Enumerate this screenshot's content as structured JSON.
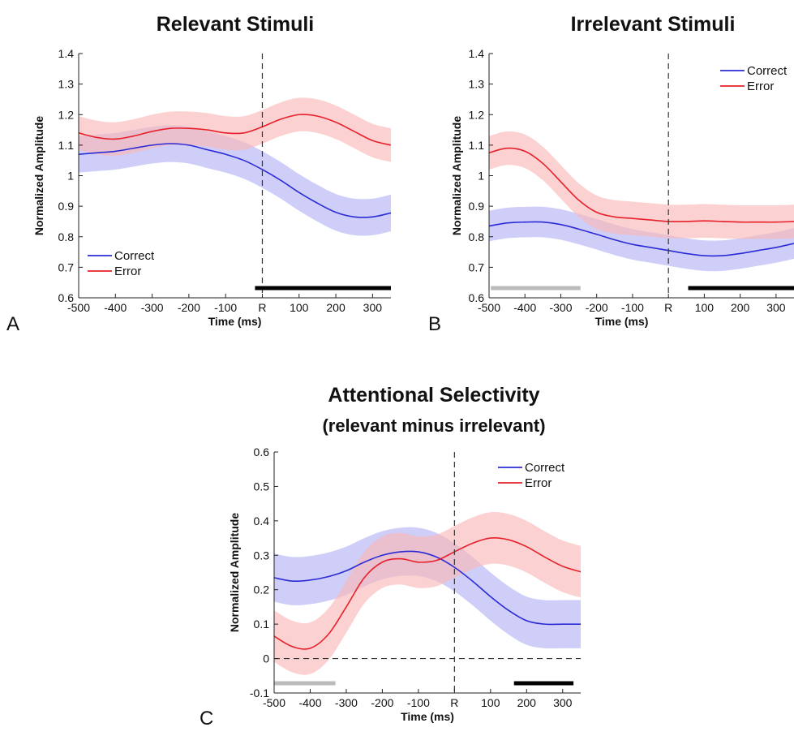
{
  "chart_data": [
    {
      "type": "line",
      "panel_letter": "A",
      "title": "Relevant Stimuli",
      "subtitle": "",
      "xlabel": "Time (ms)",
      "ylabel": "Normalized Amplitude",
      "xlim": [
        -500,
        350
      ],
      "ylim": [
        0.6,
        1.4
      ],
      "xticks": [
        -500,
        -400,
        -300,
        -200,
        -100,
        0,
        100,
        200,
        300
      ],
      "xtick_labels": [
        "-500",
        "-400",
        "-300",
        "-200",
        "-100",
        "R",
        "100",
        "200",
        "300"
      ],
      "yticks": [
        0.6,
        0.7,
        0.8,
        0.9,
        1.0,
        1.1,
        1.2,
        1.3,
        1.4
      ],
      "ytick_labels": [
        "0.6",
        "0.7",
        "0.8",
        "0.9",
        "1",
        "1.1",
        "1.2",
        "1.3",
        "1.4"
      ],
      "vline_x": 0,
      "hline_y": null,
      "legend_position": "bottom-left",
      "significance_bars": [
        {
          "color": "#000000",
          "x_start": -20,
          "x_end": 350
        }
      ],
      "x": [
        -500,
        -450,
        -400,
        -350,
        -300,
        -250,
        -200,
        -150,
        -100,
        -50,
        0,
        50,
        100,
        150,
        200,
        250,
        300,
        350
      ],
      "series": [
        {
          "name": "Correct",
          "color": "#2b2bd6",
          "band_color": "#b4b4f6",
          "values": [
            1.07,
            1.075,
            1.08,
            1.09,
            1.1,
            1.105,
            1.1,
            1.085,
            1.07,
            1.05,
            1.02,
            0.985,
            0.945,
            0.91,
            0.88,
            0.865,
            0.865,
            0.878
          ],
          "band": 0.06
        },
        {
          "name": "Error",
          "color": "#e8202a",
          "band_color": "#f9b8b8",
          "values": [
            1.14,
            1.125,
            1.12,
            1.13,
            1.145,
            1.155,
            1.155,
            1.15,
            1.14,
            1.14,
            1.16,
            1.185,
            1.2,
            1.195,
            1.175,
            1.145,
            1.115,
            1.1
          ],
          "band": 0.055
        }
      ]
    },
    {
      "type": "line",
      "panel_letter": "B",
      "title": "Irrelevant Stimuli",
      "subtitle": "",
      "xlabel": "Time (ms)",
      "ylabel": "Normalized Amplitude",
      "xlim": [
        -500,
        350
      ],
      "ylim": [
        0.6,
        1.4
      ],
      "xticks": [
        -500,
        -400,
        -300,
        -200,
        -100,
        0,
        100,
        200,
        300
      ],
      "xtick_labels": [
        "-500",
        "-400",
        "-300",
        "-200",
        "-100",
        "R",
        "100",
        "200",
        "300"
      ],
      "yticks": [
        0.6,
        0.7,
        0.8,
        0.9,
        1.0,
        1.1,
        1.2,
        1.3,
        1.4
      ],
      "ytick_labels": [
        "0.6",
        "0.7",
        "0.8",
        "0.9",
        "1",
        "1.1",
        "1.2",
        "1.3",
        "1.4"
      ],
      "vline_x": 0,
      "hline_y": null,
      "legend_position": "top-right",
      "significance_bars": [
        {
          "color": "#bbbbbb",
          "x_start": -495,
          "x_end": -245
        },
        {
          "color": "#000000",
          "x_start": 55,
          "x_end": 350
        }
      ],
      "x": [
        -500,
        -450,
        -400,
        -350,
        -300,
        -250,
        -200,
        -150,
        -100,
        -50,
        0,
        50,
        100,
        150,
        200,
        250,
        300,
        350
      ],
      "series": [
        {
          "name": "Correct",
          "color": "#2b2bd6",
          "band_color": "#b4b4f6",
          "values": [
            0.835,
            0.845,
            0.848,
            0.848,
            0.84,
            0.825,
            0.808,
            0.79,
            0.775,
            0.765,
            0.755,
            0.745,
            0.738,
            0.738,
            0.745,
            0.755,
            0.765,
            0.778
          ],
          "band": 0.05
        },
        {
          "name": "Error",
          "color": "#e8202a",
          "band_color": "#f9b8b8",
          "values": [
            1.075,
            1.09,
            1.08,
            1.04,
            0.98,
            0.92,
            0.88,
            0.865,
            0.86,
            0.855,
            0.85,
            0.85,
            0.852,
            0.85,
            0.848,
            0.848,
            0.848,
            0.85
          ],
          "band": 0.055
        }
      ]
    },
    {
      "type": "line",
      "panel_letter": "C",
      "title": "Attentional Selectivity",
      "subtitle": "(relevant minus irrelevant)",
      "xlabel": "Time (ms)",
      "ylabel": "Normalized Amplitude",
      "xlim": [
        -500,
        350
      ],
      "ylim": [
        -0.1,
        0.6
      ],
      "xticks": [
        -500,
        -400,
        -300,
        -200,
        -100,
        0,
        100,
        200,
        300
      ],
      "xtick_labels": [
        "-500",
        "-400",
        "-300",
        "-200",
        "-100",
        "R",
        "100",
        "200",
        "300"
      ],
      "yticks": [
        -0.1,
        0,
        0.1,
        0.2,
        0.3,
        0.4,
        0.5,
        0.6
      ],
      "ytick_labels": [
        "-0.1",
        "0",
        "0.1",
        "0.2",
        "0.3",
        "0.4",
        "0.5",
        "0.6"
      ],
      "vline_x": 0,
      "hline_y": 0,
      "legend_position": "top-right",
      "significance_bars": [
        {
          "color": "#bbbbbb",
          "x_start": -500,
          "x_end": -330
        },
        {
          "color": "#000000",
          "x_start": 165,
          "x_end": 330
        }
      ],
      "x": [
        -500,
        -450,
        -400,
        -350,
        -300,
        -250,
        -200,
        -150,
        -100,
        -50,
        0,
        50,
        100,
        150,
        200,
        250,
        300,
        350
      ],
      "series": [
        {
          "name": "Correct",
          "color": "#2b2bd6",
          "band_color": "#b4b4f6",
          "values": [
            0.235,
            0.225,
            0.228,
            0.238,
            0.255,
            0.28,
            0.3,
            0.31,
            0.31,
            0.295,
            0.265,
            0.225,
            0.18,
            0.14,
            0.11,
            0.1,
            0.1,
            0.1
          ],
          "band": 0.07
        },
        {
          "name": "Error",
          "color": "#e8202a",
          "band_color": "#f9b8b8",
          "values": [
            0.065,
            0.035,
            0.03,
            0.07,
            0.15,
            0.235,
            0.28,
            0.29,
            0.28,
            0.285,
            0.31,
            0.335,
            0.35,
            0.345,
            0.325,
            0.295,
            0.268,
            0.252
          ],
          "band": 0.075
        }
      ]
    }
  ]
}
